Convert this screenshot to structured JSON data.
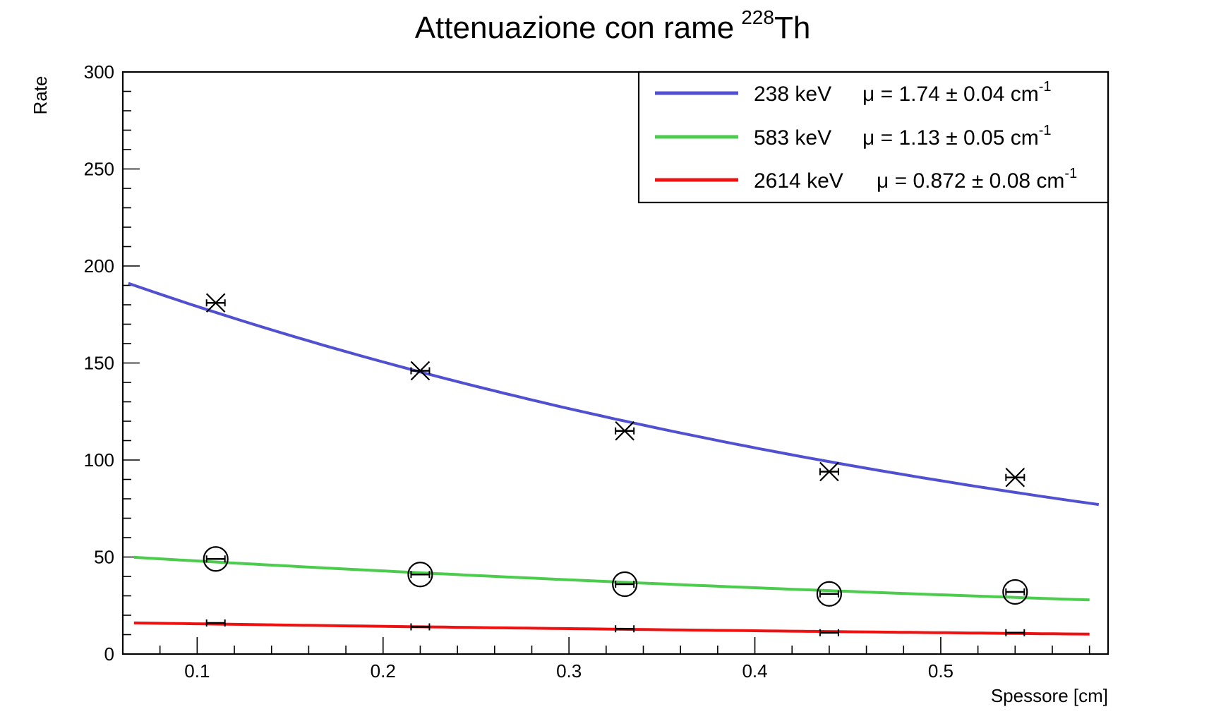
{
  "chart_data": {
    "type": "scatter",
    "title": "Attenuazione con rame",
    "title_superscript": "228",
    "title_suffix": "Th",
    "xlabel": "Spessore [cm]",
    "ylabel": "Rate",
    "xlim": [
      0.06,
      0.59
    ],
    "ylim": [
      0,
      300
    ],
    "x_ticks": [
      "0.1",
      "0.2",
      "0.3",
      "0.4",
      "0.5"
    ],
    "y_ticks": [
      "0",
      "50",
      "100",
      "150",
      "200",
      "250",
      "300"
    ],
    "grid": false,
    "legend_position": "top-right",
    "x": [
      0.11,
      0.22,
      0.33,
      0.44,
      0.54
    ],
    "series": [
      {
        "name": "238 keV",
        "mu_label": "μ = 1.74 ± 0.04 cm",
        "unit_exponent": "-1",
        "color": "#5050d0",
        "marker": "x",
        "values": [
          181,
          146,
          115,
          94,
          91
        ],
        "fit": {
          "A": 213.2,
          "mu": 1.74,
          "x_start": 0.063,
          "x_end": 0.585
        }
      },
      {
        "name": "583 keV",
        "mu_label": "μ = 1.13 ± 0.05 cm",
        "unit_exponent": "-1",
        "color": "#4ccc4c",
        "marker": "circle",
        "values": [
          49,
          41,
          36,
          31,
          32
        ],
        "fit": {
          "A": 53.7,
          "mu": 1.13,
          "x_start": 0.066,
          "x_end": 0.58
        }
      },
      {
        "name": "2614 keV",
        "mu_label": "μ = 0.872 ± 0.08 cm",
        "unit_exponent": "-1",
        "color": "#ee1111",
        "marker": "none",
        "values": [
          16,
          14,
          13,
          11,
          11
        ],
        "fit": {
          "A": 17.0,
          "mu": 0.872,
          "x_start": 0.066,
          "x_end": 0.58
        }
      }
    ]
  }
}
